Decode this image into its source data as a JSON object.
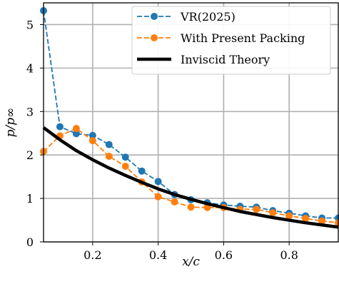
{
  "chart_data": {
    "type": "line",
    "title": "",
    "xlabel": "x/c",
    "ylabel": "p/p∞",
    "xlim": [
      0.05,
      0.95
    ],
    "ylim": [
      0,
      5.5
    ],
    "xticks": [
      0.2,
      0.4,
      0.6,
      0.8
    ],
    "xtick_labels": [
      "0.2",
      "0.4",
      "0.6",
      "0.8"
    ],
    "yticks": [
      0,
      1,
      2,
      3,
      4,
      5
    ],
    "ytick_labels": [
      "0",
      "1",
      "2",
      "3",
      "4",
      "5"
    ],
    "grid": true,
    "legend_position": "top-right",
    "series": [
      {
        "name": "VR(2025)",
        "color": "#1f77b4",
        "style": "dashed-marker",
        "x": [
          0.05,
          0.1,
          0.15,
          0.2,
          0.25,
          0.3,
          0.35,
          0.4,
          0.45,
          0.5,
          0.55,
          0.6,
          0.65,
          0.7,
          0.75,
          0.8,
          0.85,
          0.9,
          0.95
        ],
        "y": [
          5.32,
          2.65,
          2.49,
          2.45,
          2.24,
          1.95,
          1.63,
          1.39,
          1.09,
          0.97,
          0.9,
          0.85,
          0.82,
          0.8,
          0.72,
          0.66,
          0.6,
          0.55,
          0.55
        ]
      },
      {
        "name": "With Present Packing",
        "color": "#ff7f0e",
        "style": "dashed-marker",
        "x": [
          0.05,
          0.1,
          0.15,
          0.2,
          0.25,
          0.3,
          0.35,
          0.4,
          0.45,
          0.5,
          0.55,
          0.6,
          0.65,
          0.7,
          0.75,
          0.8,
          0.85,
          0.9,
          0.95
        ],
        "y": [
          2.08,
          2.44,
          2.61,
          2.33,
          1.97,
          1.74,
          1.38,
          1.04,
          0.92,
          0.8,
          0.79,
          0.79,
          0.75,
          0.75,
          0.67,
          0.6,
          0.54,
          0.48,
          0.44
        ]
      },
      {
        "name": "Inviscid Theory",
        "color": "#000000",
        "style": "solid",
        "x": [
          0.05,
          0.1,
          0.15,
          0.2,
          0.25,
          0.3,
          0.35,
          0.4,
          0.45,
          0.5,
          0.55,
          0.6,
          0.65,
          0.7,
          0.75,
          0.8,
          0.85,
          0.9,
          0.95
        ],
        "y": [
          2.63,
          2.35,
          2.1,
          1.89,
          1.7,
          1.53,
          1.37,
          1.22,
          1.09,
          0.98,
          0.88,
          0.79,
          0.7,
          0.63,
          0.56,
          0.5,
          0.44,
          0.39,
          0.34
        ]
      }
    ]
  }
}
